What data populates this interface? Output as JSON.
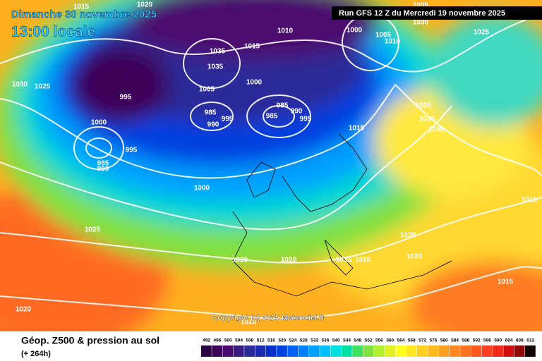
{
  "header": {
    "date": "Dimanche 30 novembre 2025",
    "time": "13:00 locale",
    "run": "Run GFS 12 Z du Mercredi 19 novembre 2025"
  },
  "copyright": "Copyright (c) 2025 Meteociel.fr",
  "footer": {
    "title": "Géop. Z500 & pression au sol",
    "lead": "(+ 264h)"
  },
  "isobar_labels": [
    1015,
    1020,
    1010,
    1000,
    1005,
    1010,
    1030,
    1035,
    1025,
    1015,
    1035,
    1035,
    1005,
    1000,
    995,
    1030,
    1025,
    985,
    990,
    995,
    985,
    985,
    990,
    995,
    1000,
    995,
    985,
    990,
    1000,
    1015,
    1025,
    1030,
    1035,
    1015,
    1025,
    1020,
    1020,
    1015,
    1015,
    1020,
    1020,
    1015,
    1020,
    1020
  ],
  "scale": {
    "values": [
      492,
      496,
      500,
      504,
      508,
      512,
      516,
      520,
      524,
      528,
      532,
      536,
      540,
      544,
      548,
      552,
      556,
      560,
      564,
      568,
      572,
      576,
      580,
      584,
      588,
      592,
      596,
      600,
      604,
      608,
      612
    ],
    "colors": [
      "#2a0040",
      "#3c0058",
      "#4b0a6e",
      "#3a1a80",
      "#2a2a99",
      "#1a2ab3",
      "#0a30cc",
      "#0044e0",
      "#0060f0",
      "#0080ff",
      "#00a0ff",
      "#00c0ff",
      "#00e0e0",
      "#00e0a0",
      "#40e060",
      "#80e040",
      "#b0f030",
      "#e0f020",
      "#ffff20",
      "#ffe820",
      "#ffd020",
      "#ffb820",
      "#ffa020",
      "#ff8820",
      "#ff7020",
      "#ff5820",
      "#ff4020",
      "#f02818",
      "#d01010",
      "#900808",
      "#100000"
    ]
  }
}
